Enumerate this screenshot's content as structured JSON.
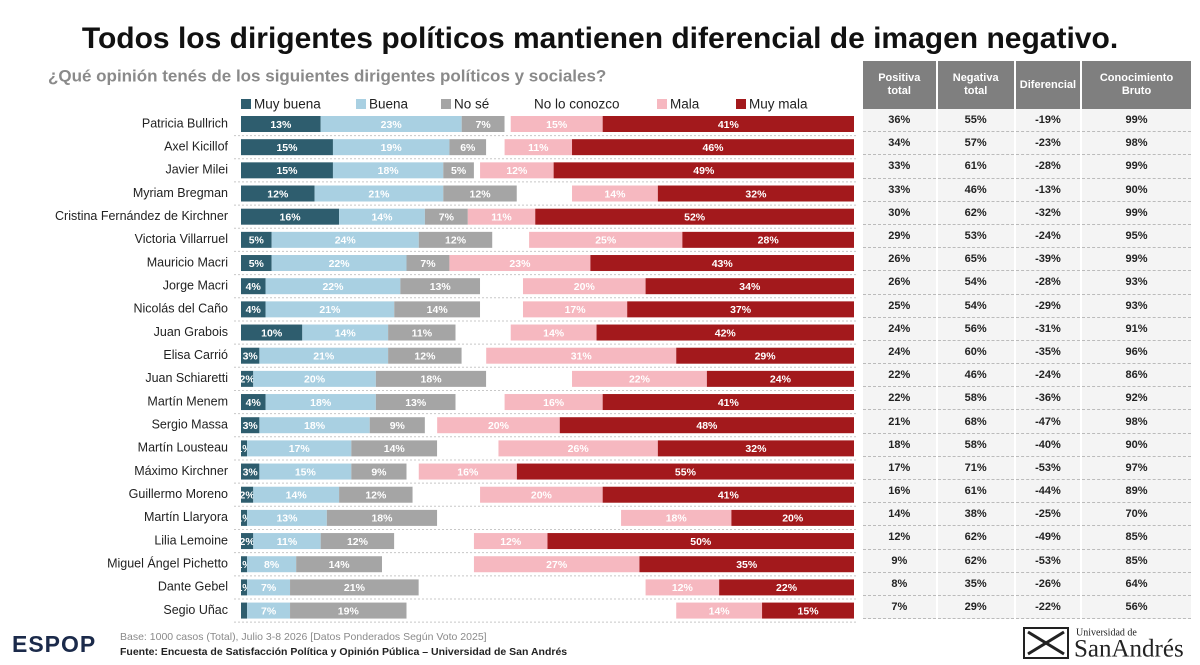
{
  "chart_data": {
    "type": "stacked-bar-horizontal",
    "title": "Todos los dirigentes políticos mantienen diferencial de imagen negativo.",
    "subtitle": "¿Qué opinión tenés de los siguientes dirigentes políticos y sociales?",
    "categories": [
      "Patricia Bullrich",
      "Axel Kicillof",
      "Javier Milei",
      "Myriam Bregman",
      "Cristina Fernández de Kirchner",
      "Victoria Villarruel",
      "Mauricio Macri",
      "Jorge Macri",
      "Nicolás del Caño",
      "Juan Grabois",
      "Elisa Carrió",
      "Juan Schiaretti",
      "Martín Menem",
      "Sergio Massa",
      "Martín Lousteau",
      "Máximo Kirchner",
      "Guillermo Moreno",
      "Martín Llaryora",
      "Lilia Lemoine",
      "Miguel Ángel Pichetto",
      "Dante Gebel",
      "Segio Uñac"
    ],
    "series": [
      {
        "name": "Muy buena",
        "color": "#2e5d6e",
        "values": [
          13,
          15,
          15,
          12,
          16,
          5,
          5,
          4,
          4,
          10,
          3,
          2,
          4,
          3,
          1,
          3,
          2,
          1,
          2,
          1,
          1,
          1
        ],
        "value_labels": [
          "13%",
          "15%",
          "15%",
          "12%",
          "16%",
          "5%",
          "5%",
          "4%",
          "4%",
          "10%",
          "3%",
          "2%",
          "4%",
          "3%",
          "1%",
          "3%",
          "2%",
          "1%",
          "2%",
          "1%",
          "1%",
          null
        ]
      },
      {
        "name": "Buena",
        "color": "#a9d0e2",
        "values": [
          23,
          19,
          18,
          21,
          14,
          24,
          22,
          22,
          21,
          14,
          21,
          20,
          18,
          18,
          17,
          15,
          14,
          13,
          11,
          8,
          7,
          7
        ],
        "value_labels": [
          "23%",
          "19%",
          "18%",
          "21%",
          "14%",
          "24%",
          "22%",
          "22%",
          "21%",
          "14%",
          "21%",
          "20%",
          "18%",
          "18%",
          "17%",
          "15%",
          "14%",
          "13%",
          "11%",
          "8%",
          "7%",
          "7%"
        ]
      },
      {
        "name": "No sé",
        "color": "#a5a5a5",
        "values": [
          7,
          6,
          5,
          12,
          7,
          12,
          7,
          13,
          14,
          11,
          12,
          18,
          13,
          9,
          14,
          9,
          12,
          18,
          12,
          14,
          21,
          19
        ],
        "value_labels": [
          "7%",
          "6%",
          "5%",
          "12%",
          "7%",
          "12%",
          "7%",
          "13%",
          "14%",
          "11%",
          "12%",
          "18%",
          "13%",
          "9%",
          "14%",
          "9%",
          "12%",
          "18%",
          "12%",
          "14%",
          "21%",
          "19%"
        ]
      },
      {
        "name": "No lo conozco",
        "color": "#ffffff",
        "values": [
          1,
          3,
          1,
          9,
          0,
          6,
          0,
          7,
          7,
          9,
          4,
          14,
          8,
          2,
          10,
          2,
          11,
          30,
          13,
          15,
          37,
          44
        ]
      },
      {
        "name": "Mala",
        "color": "#f6b8c0",
        "values": [
          15,
          11,
          12,
          14,
          11,
          25,
          23,
          20,
          17,
          14,
          31,
          22,
          16,
          20,
          26,
          16,
          20,
          18,
          12,
          27,
          12,
          14
        ],
        "value_labels": [
          "15%",
          "11%",
          "12%",
          "14%",
          "11%",
          "25%",
          "23%",
          "20%",
          "17%",
          "14%",
          "31%",
          "22%",
          "16%",
          "20%",
          "26%",
          "16%",
          "20%",
          "18%",
          "12%",
          "27%",
          "12%",
          "14%"
        ]
      },
      {
        "name": "Muy mala",
        "color": "#a3191c",
        "values": [
          41,
          46,
          49,
          32,
          52,
          28,
          43,
          34,
          37,
          42,
          29,
          24,
          41,
          48,
          32,
          55,
          41,
          20,
          50,
          35,
          22,
          15
        ],
        "value_labels": [
          "41%",
          "46%",
          "49%",
          "32%",
          "52%",
          "28%",
          "43%",
          "34%",
          "37%",
          "42%",
          "29%",
          "24%",
          "41%",
          "48%",
          "32%",
          "55%",
          "41%",
          "20%",
          "50%",
          "35%",
          "22%",
          "15%"
        ]
      }
    ]
  },
  "table": {
    "columns": [
      "Positiva total",
      "Negativa total",
      "Diferencial",
      "Conocimiento Bruto"
    ],
    "rows": [
      [
        "36%",
        "55%",
        "-19%",
        "99%"
      ],
      [
        "34%",
        "57%",
        "-23%",
        "98%"
      ],
      [
        "33%",
        "61%",
        "-28%",
        "99%"
      ],
      [
        "33%",
        "46%",
        "-13%",
        "90%"
      ],
      [
        "30%",
        "62%",
        "-32%",
        "99%"
      ],
      [
        "29%",
        "53%",
        "-24%",
        "95%"
      ],
      [
        "26%",
        "65%",
        "-39%",
        "99%"
      ],
      [
        "26%",
        "54%",
        "-28%",
        "93%"
      ],
      [
        "25%",
        "54%",
        "-29%",
        "93%"
      ],
      [
        "24%",
        "56%",
        "-31%",
        "91%"
      ],
      [
        "24%",
        "60%",
        "-35%",
        "96%"
      ],
      [
        "22%",
        "46%",
        "-24%",
        "86%"
      ],
      [
        "22%",
        "58%",
        "-36%",
        "92%"
      ],
      [
        "21%",
        "68%",
        "-47%",
        "98%"
      ],
      [
        "18%",
        "58%",
        "-40%",
        "90%"
      ],
      [
        "17%",
        "71%",
        "-53%",
        "97%"
      ],
      [
        "16%",
        "61%",
        "-44%",
        "89%"
      ],
      [
        "14%",
        "38%",
        "-25%",
        "70%"
      ],
      [
        "12%",
        "62%",
        "-49%",
        "85%"
      ],
      [
        "9%",
        "62%",
        "-53%",
        "85%"
      ],
      [
        "8%",
        "35%",
        "-26%",
        "64%"
      ],
      [
        "7%",
        "29%",
        "-22%",
        "56%"
      ]
    ]
  },
  "footer": {
    "base": "Base: 1000 casos (Total), Julio 3-8 2026 [Datos Ponderados Según Voto 2025]",
    "source": "Fuente: Encuesta de Satisfacción Política y Opinión Pública – Universidad de San Andrés",
    "brand": "ESPOP",
    "university_top": "Universidad de",
    "university_name": "SanAndrés"
  }
}
